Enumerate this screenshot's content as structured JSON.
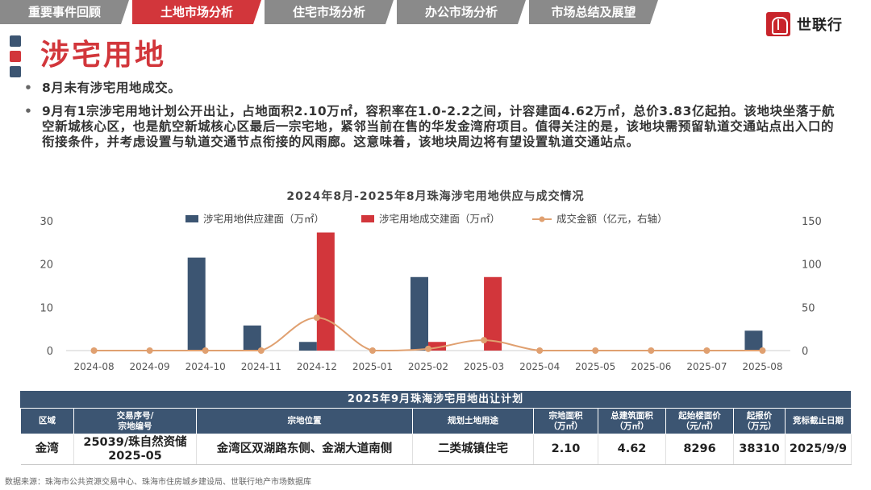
{
  "tabs": [
    {
      "label": "重要事件回顾"
    },
    {
      "label": "土地市场分析"
    },
    {
      "label": "住宅市场分析"
    },
    {
      "label": "办公市场分析"
    },
    {
      "label": "市场总结及展望"
    }
  ],
  "active_tab": "土地市场分析",
  "logo": {
    "text": "世联行"
  },
  "page_title": "涉宅用地",
  "bullets": [
    "8月未有涉宅用地成交。",
    "9月有1宗涉宅用地计划公开出让，占地面积2.10万㎡，容积率在1.0-2.2之间，计容建面4.62万㎡，总价3.83亿起拍。该地块坐落于航空新城核心区，也是航空新城核心区最后一宗宅地，紧邻当前在售的华发金湾府项目。值得关注的是，该地块需预留轨道交通站点出入口的衔接条件，并考虑设置与轨道交通节点衔接的风雨廊。这意味着，该地块周边将有望设置轨道交通站点。"
  ],
  "colors": {
    "primary": "#3c5572",
    "accent": "#d2363b",
    "line": "#e0a070",
    "tab_inactive": "#8a8a8a"
  },
  "chart_data": {
    "type": "bar",
    "title": "2024年8月-2025年8月珠海涉宅用地供应与成交情况",
    "categories": [
      "2024-08",
      "2024-09",
      "2024-10",
      "2024-11",
      "2024-12",
      "2025-01",
      "2025-02",
      "2025-03",
      "2025-04",
      "2025-05",
      "2025-06",
      "2025-07",
      "2025-08"
    ],
    "series": [
      {
        "name": "涉宅用地供应建面（万㎡）",
        "kind": "bar",
        "axis": "left",
        "color": "#3c5572",
        "values": [
          0,
          0,
          21.5,
          5.8,
          2.0,
          0,
          17.0,
          0,
          0,
          0,
          0,
          0,
          4.6
        ]
      },
      {
        "name": "涉宅用地成交建面（万㎡）",
        "kind": "bar",
        "axis": "left",
        "color": "#d2363b",
        "values": [
          0,
          0,
          0,
          0,
          27.3,
          0,
          2.0,
          17.0,
          0,
          0,
          0,
          0,
          0
        ]
      },
      {
        "name": "成交金额（亿元，右轴）",
        "kind": "line",
        "axis": "right",
        "color": "#e0a070",
        "values": [
          0,
          0,
          0,
          0,
          38,
          0,
          2,
          12,
          0,
          0,
          0,
          0,
          0
        ]
      }
    ],
    "ylim_left": [
      0,
      30
    ],
    "yticks_left": [
      0,
      10,
      20,
      30
    ],
    "ylim_right": [
      0,
      150
    ],
    "yticks_right": [
      0,
      50,
      100,
      150
    ],
    "legend": "top",
    "grid": false
  },
  "table": {
    "title": "2025年9月珠海涉宅用地出让计划",
    "headers": [
      "区域",
      "交易序号/\n宗地编号",
      "宗地位置",
      "规划土地用途",
      "宗地面积\n（万㎡）",
      "总建筑面积\n（万㎡）",
      "起始楼面价\n（元/㎡）",
      "起报价\n（万元）",
      "竞标截止日期"
    ],
    "rows": [
      [
        "金湾",
        "25039/珠自然资储\n2025-05",
        "金湾区双湖路东侧、金湖大道南侧",
        "二类城镇住宅",
        "2.10",
        "4.62",
        "8296",
        "38310",
        "2025/9/9"
      ]
    ]
  },
  "source": "数据来源：珠海市公共资源交易中心、珠海市住房城乡建设局、世联行地产市场数据库"
}
